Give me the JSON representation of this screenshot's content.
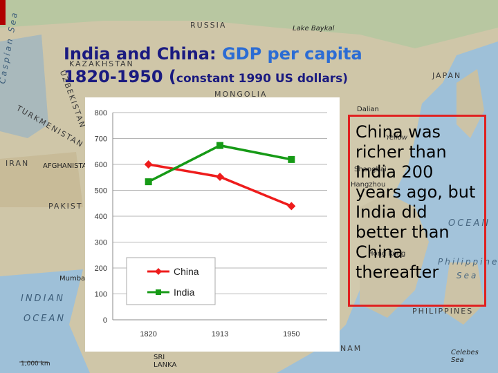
{
  "title": {
    "part1": "India and China:",
    "part2": "GDP per capita",
    "part3": "1820-1950 (",
    "part4": "constant 1990 US dollars)"
  },
  "map_labels": {
    "russia": "RUSSIA",
    "lake_baykal": "Lake Baykal",
    "caspian_sea": "Caspian Sea",
    "kazakhstan": "KAZAKHSTAN",
    "mongolia": "MONGOLIA",
    "japan": "JAPAN",
    "turkmenistan": "TURKMENISTAN",
    "uzbekistan": "UZBEKISTAN",
    "iran": "IRAN",
    "afghanistan": "AFGHANISTAN",
    "pakistan": "PAKIST",
    "dalian": "Dalian",
    "yellow_sea": "Yellow",
    "shanghai": "Shanghai",
    "hangzhou": "Hangzhou",
    "ocean_right": "OCEAN",
    "philippine_sea": "Philippine",
    "sea": "Sea",
    "hong_kong": "Hong Kong",
    "mumbai": "Mumbai",
    "indian_ocean_1": "INDIAN",
    "indian_ocean_2": "OCEAN",
    "philippines": "PHILIPPINES",
    "celebes_sea": "Celebes Sea",
    "nam": "NAM",
    "sri_lanka": "SRI LANKA",
    "scale": "1,000 km"
  },
  "callout": {
    "lines": [
      "China was",
      "richer than",
      "India 200",
      "years ago, but",
      "India did",
      "better than",
      "China",
      "thereafter"
    ]
  },
  "colors": {
    "china": "#ee1c1c",
    "india": "#169a16",
    "callout_border": "#e02020",
    "title_dark": "#1a1a80",
    "title_light": "#2b6cd4"
  },
  "chart_data": {
    "type": "line",
    "categories": [
      "1820",
      "1913",
      "1950"
    ],
    "series": [
      {
        "name": "China",
        "values": [
          600,
          552,
          439
        ]
      },
      {
        "name": "India",
        "values": [
          533,
          673,
          619
        ]
      }
    ],
    "yticks": [
      "0",
      "100",
      "200",
      "300",
      "400",
      "500",
      "600",
      "700",
      "800"
    ],
    "ylim": [
      0,
      800
    ],
    "grid": true,
    "legend": "bottom-left"
  }
}
